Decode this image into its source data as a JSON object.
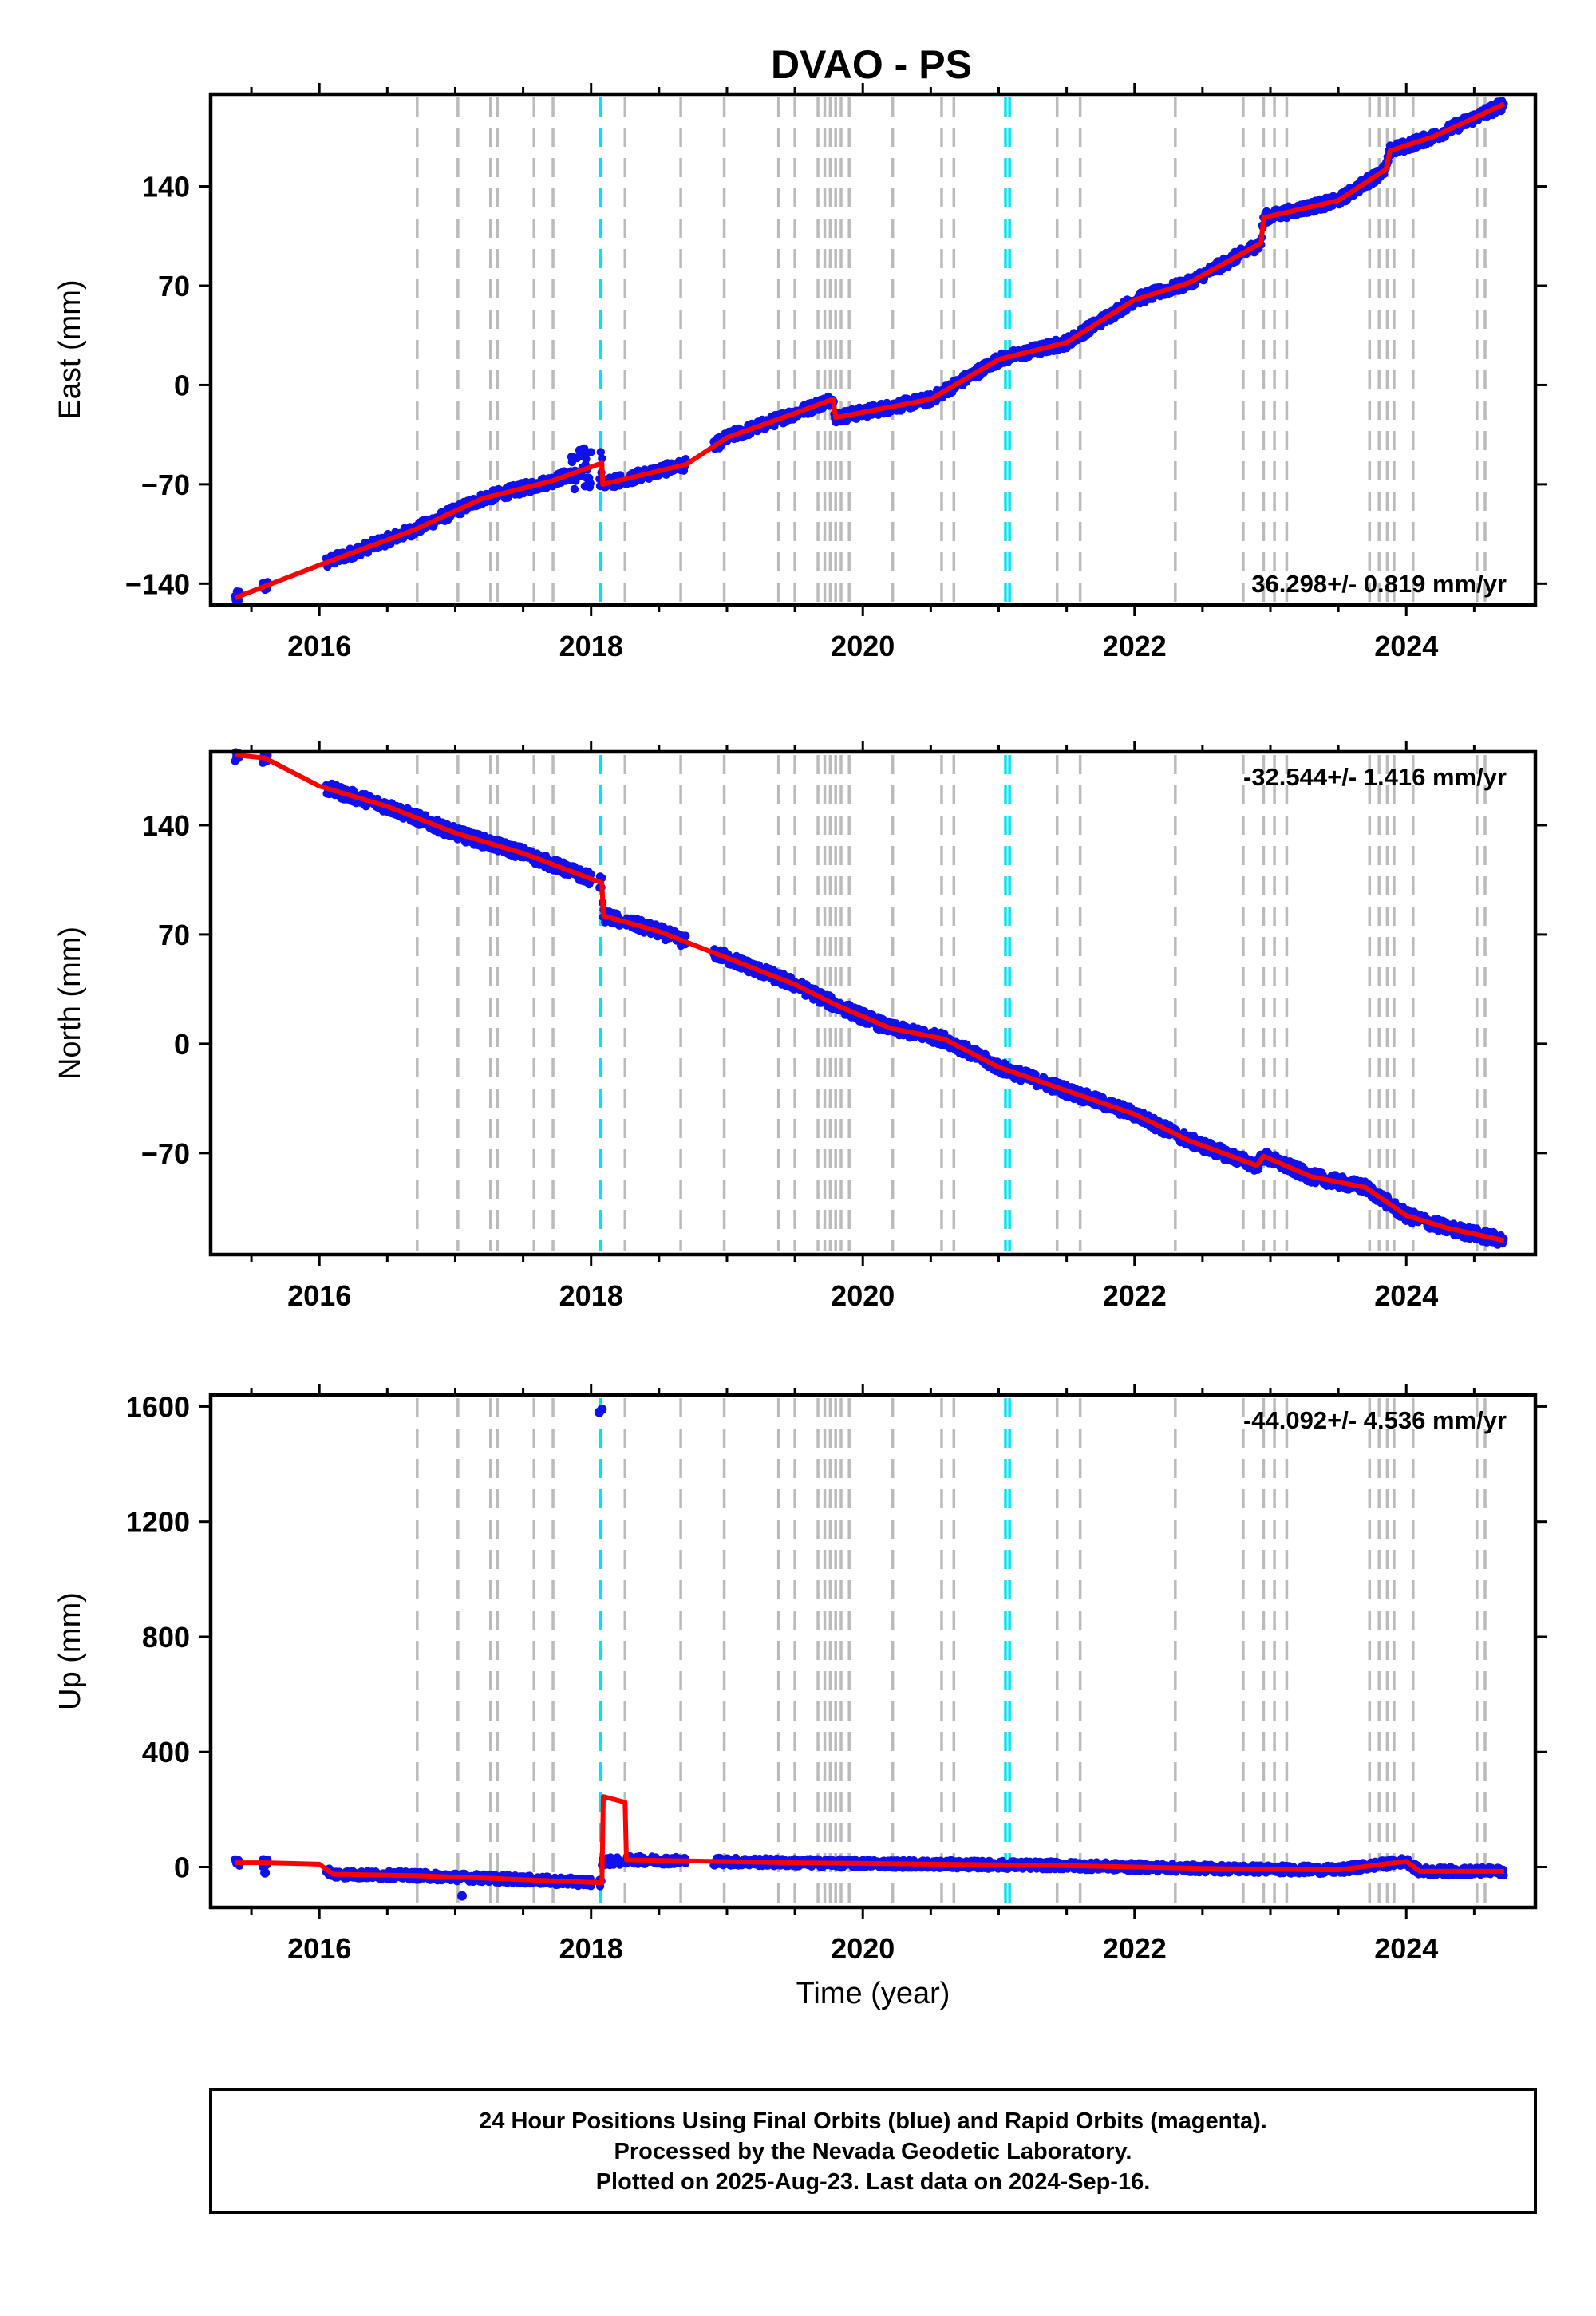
{
  "title": "DVAO - PS",
  "footer": [
    "24 Hour Positions Using Final Orbits (blue) and Rapid Orbits (magenta).",
    "Processed by the Nevada Geodetic Laboratory.",
    "Plotted on 2025-Aug-23. Last data on 2024-Sep-16."
  ],
  "colors": {
    "data": "#1010ee",
    "model": "#ff0000",
    "gray_line": "#bbbbbb",
    "cyan_line": "#00e5f5"
  },
  "chart_data": [
    {
      "type": "scatter",
      "ylabel": "East (mm)",
      "xlabel": "",
      "xlim": [
        2015.2,
        2024.95
      ],
      "ylim": [
        -155,
        205
      ],
      "yticks": [
        -140,
        -70,
        0,
        70,
        140
      ],
      "xticks": [
        2016,
        2018,
        2020,
        2022,
        2024
      ],
      "rate": "36.298+/- 0.819 mm/yr",
      "rate_position": "bottom-right",
      "model": [
        [
          2015.38,
          -150
        ],
        [
          2016.0,
          -127
        ],
        [
          2016.7,
          -102
        ],
        [
          2017.2,
          -80
        ],
        [
          2017.7,
          -68
        ],
        [
          2018.08,
          -55
        ],
        [
          2018.085,
          -70
        ],
        [
          2018.7,
          -56
        ],
        [
          2019.0,
          -37
        ],
        [
          2019.5,
          -20
        ],
        [
          2019.78,
          -10
        ],
        [
          2019.8,
          -23
        ],
        [
          2020.5,
          -10
        ],
        [
          2021.0,
          18
        ],
        [
          2021.5,
          30
        ],
        [
          2022.0,
          60
        ],
        [
          2022.4,
          72
        ],
        [
          2022.93,
          100
        ],
        [
          2022.95,
          118
        ],
        [
          2023.5,
          130
        ],
        [
          2023.85,
          152
        ],
        [
          2023.88,
          165
        ],
        [
          2024.2,
          175
        ],
        [
          2024.72,
          198
        ]
      ]
    },
    {
      "type": "scatter",
      "ylabel": "North (mm)",
      "xlabel": "",
      "xlim": [
        2015.2,
        2024.95
      ],
      "ylim": [
        -135,
        187
      ],
      "yticks": [
        -70,
        0,
        70,
        140
      ],
      "xticks": [
        2016,
        2018,
        2020,
        2022,
        2024
      ],
      "rate": "-32.544+/- 1.416 mm/yr",
      "rate_position": "top-right",
      "model": [
        [
          2015.38,
          185
        ],
        [
          2015.6,
          183
        ],
        [
          2016.0,
          165
        ],
        [
          2016.5,
          152
        ],
        [
          2017.0,
          135
        ],
        [
          2017.5,
          122
        ],
        [
          2018.08,
          103
        ],
        [
          2018.09,
          82
        ],
        [
          2018.5,
          72
        ],
        [
          2019.0,
          55
        ],
        [
          2019.5,
          38
        ],
        [
          2019.8,
          25
        ],
        [
          2020.2,
          10
        ],
        [
          2020.6,
          3
        ],
        [
          2021.0,
          -15
        ],
        [
          2021.5,
          -30
        ],
        [
          2022.0,
          -45
        ],
        [
          2022.4,
          -62
        ],
        [
          2022.9,
          -78
        ],
        [
          2022.95,
          -72
        ],
        [
          2023.3,
          -85
        ],
        [
          2023.7,
          -92
        ],
        [
          2024.0,
          -110
        ],
        [
          2024.3,
          -118
        ],
        [
          2024.72,
          -126
        ]
      ]
    },
    {
      "type": "scatter",
      "ylabel": "Up (mm)",
      "xlabel": "Time (year)",
      "xlim": [
        2015.2,
        2024.95
      ],
      "ylim": [
        -140,
        1640
      ],
      "yticks": [
        0,
        400,
        800,
        1200,
        1600
      ],
      "xticks": [
        2016,
        2018,
        2020,
        2022,
        2024
      ],
      "rate": "-44.092+/- 4.536 mm/yr",
      "rate_position": "top-right",
      "outliers": [
        [
          2018.08,
          1590
        ],
        [
          2018.06,
          1580
        ],
        [
          2017.05,
          -100
        ],
        [
          2015.6,
          -20
        ]
      ],
      "model": [
        [
          2015.38,
          15
        ],
        [
          2015.6,
          15
        ],
        [
          2016.0,
          10
        ],
        [
          2016.1,
          -25
        ],
        [
          2016.7,
          -30
        ],
        [
          2017.3,
          -40
        ],
        [
          2018.08,
          -55
        ],
        [
          2018.09,
          245
        ],
        [
          2018.25,
          225
        ],
        [
          2018.26,
          25
        ],
        [
          2019.5,
          15
        ],
        [
          2020.5,
          10
        ],
        [
          2021.5,
          5
        ],
        [
          2022.5,
          -5
        ],
        [
          2023.5,
          -10
        ],
        [
          2024.0,
          20
        ],
        [
          2024.1,
          -15
        ],
        [
          2024.72,
          -15
        ]
      ]
    }
  ],
  "gray_lines": [
    2016.72,
    2017.02,
    2017.26,
    2017.31,
    2017.58,
    2017.72,
    2018.25,
    2018.66,
    2018.98,
    2019.38,
    2019.5,
    2019.67,
    2019.72,
    2019.76,
    2019.8,
    2019.84,
    2019.9,
    2020.22,
    2020.58,
    2020.67,
    2021.43,
    2021.6,
    2022.3,
    2022.8,
    2022.95,
    2023.03,
    2023.12,
    2023.73,
    2023.8,
    2023.86,
    2023.91,
    2024.05,
    2024.52,
    2024.58
  ],
  "cyan_lines": [
    2018.07,
    2021.05,
    2021.08
  ]
}
